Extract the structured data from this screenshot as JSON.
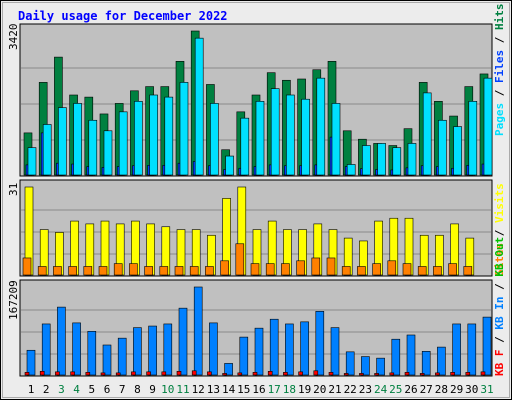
{
  "title": "Daily usage for December 2022",
  "colors": {
    "pages": "#00e0ff",
    "files": "#0040ff",
    "hits": "#008040",
    "visits": "#ffff00",
    "sites": "#ff8000",
    "kb_in": "#0080ff",
    "kb_out": "#00c000",
    "kb_f": "#ff0000",
    "weekend": "#008040",
    "weekday": "#000000",
    "chart_bg": "#c0c0c0",
    "title_color": "#0000ff"
  },
  "chart_data": [
    {
      "type": "bar",
      "panel": "top",
      "y_max_label": "3420",
      "ylim": [
        0,
        3420
      ],
      "grid": true,
      "legend": [
        "Pages",
        "Files",
        "Hits"
      ],
      "series": [
        {
          "name": "Hits",
          "values": [
            1000,
            2200,
            2800,
            1900,
            1850,
            1450,
            1700,
            2000,
            2100,
            2100,
            2700,
            3420,
            2150,
            600,
            1500,
            1900,
            2430,
            2250,
            2280,
            2500,
            2700,
            1050,
            850,
            750,
            700,
            1100,
            2200,
            1750,
            1400,
            2100,
            2400
          ]
        },
        {
          "name": "Files",
          "values": [
            240,
            1000,
            280,
            260,
            200,
            180,
            200,
            220,
            230,
            230,
            280,
            320,
            220,
            130,
            160,
            200,
            240,
            220,
            220,
            240,
            900,
            200,
            150,
            130,
            120,
            170,
            220,
            200,
            160,
            230,
            260
          ]
        },
        {
          "name": "Pages",
          "values": [
            650,
            1200,
            1600,
            1700,
            1300,
            1050,
            1500,
            1750,
            1900,
            1850,
            2200,
            3250,
            1700,
            450,
            1350,
            1750,
            2050,
            1900,
            1800,
            2300,
            1700,
            250,
            700,
            750,
            650,
            750,
            1950,
            1300,
            1150,
            1750,
            2300
          ]
        }
      ]
    },
    {
      "type": "bar",
      "panel": "middle",
      "y_max_label": "31",
      "ylim": [
        0,
        31
      ],
      "grid": true,
      "legend": [
        "Visits",
        "Sites"
      ],
      "series": [
        {
          "name": "Visits",
          "values": [
            31,
            16,
            15,
            19,
            18,
            19,
            18,
            19,
            18,
            17,
            16,
            16,
            14,
            27,
            31,
            16,
            19,
            16,
            16,
            18,
            16,
            13,
            12,
            19,
            20,
            20,
            14,
            14,
            18,
            13,
            0
          ]
        },
        {
          "name": "Sites",
          "values": [
            6,
            3,
            3,
            3,
            3,
            3,
            4,
            4,
            3,
            3,
            3,
            3,
            3,
            5,
            11,
            4,
            4,
            4,
            5,
            6,
            6,
            3,
            3,
            4,
            5,
            4,
            3,
            3,
            4,
            3,
            0
          ]
        }
      ]
    },
    {
      "type": "bar",
      "panel": "bottom",
      "y_max_label": "167209",
      "ylim": [
        0,
        167209
      ],
      "grid": true,
      "legend": [
        "KB F",
        "KB In",
        "KB Out"
      ],
      "series": [
        {
          "name": "KB In",
          "values": [
            47000,
            97000,
            129000,
            99000,
            83000,
            57000,
            70000,
            90000,
            93000,
            97000,
            127000,
            167209,
            99000,
            22000,
            72000,
            89000,
            106000,
            97000,
            101000,
            121000,
            90000,
            44000,
            35000,
            32000,
            68000,
            76000,
            45000,
            53000,
            97000,
            97000,
            110000
          ]
        },
        {
          "name": "KB F",
          "values": [
            5000,
            7000,
            6000,
            6000,
            5000,
            4000,
            4000,
            6000,
            6000,
            6000,
            7000,
            8000,
            6000,
            3000,
            4000,
            5000,
            7000,
            5000,
            6000,
            8000,
            5000,
            3000,
            3000,
            3000,
            4000,
            5000,
            3000,
            4000,
            5000,
            5000,
            6000
          ]
        }
      ]
    }
  ],
  "days": [
    "1",
    "2",
    "3",
    "4",
    "5",
    "6",
    "7",
    "8",
    "9",
    "10",
    "11",
    "12",
    "13",
    "14",
    "15",
    "16",
    "17",
    "18",
    "19",
    "20",
    "21",
    "22",
    "23",
    "24",
    "25",
    "26",
    "27",
    "28",
    "29",
    "30",
    "31"
  ],
  "weekend_days": [
    3,
    4,
    10,
    11,
    17,
    18,
    24,
    25,
    31
  ]
}
